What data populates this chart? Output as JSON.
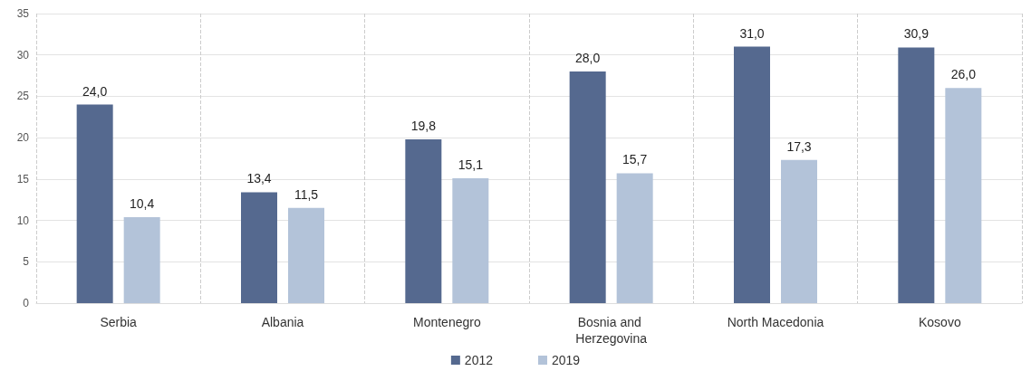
{
  "chart_data": {
    "type": "bar",
    "categories": [
      "Serbia",
      "Albania",
      "Montenegro",
      "Bosnia and Herzegovina",
      "North Macedonia",
      "Kosovo"
    ],
    "series": [
      {
        "name": "2012",
        "color": "#55698f",
        "values": [
          24.0,
          13.4,
          19.8,
          28.0,
          31.0,
          30.9
        ],
        "value_labels": [
          "24,0",
          "13,4",
          "19,8",
          "28,0",
          "31,0",
          "30,9"
        ]
      },
      {
        "name": "2019",
        "color": "#b3c3d9",
        "values": [
          10.4,
          11.5,
          15.1,
          15.7,
          17.3,
          26.0
        ],
        "value_labels": [
          "10,4",
          "11,5",
          "15,1",
          "15,7",
          "17,3",
          "26,0"
        ]
      }
    ],
    "ylim": [
      0,
      35
    ],
    "yticks": [
      0,
      5,
      10,
      15,
      20,
      25,
      30,
      35
    ],
    "grid": true,
    "legend": "bottom"
  }
}
